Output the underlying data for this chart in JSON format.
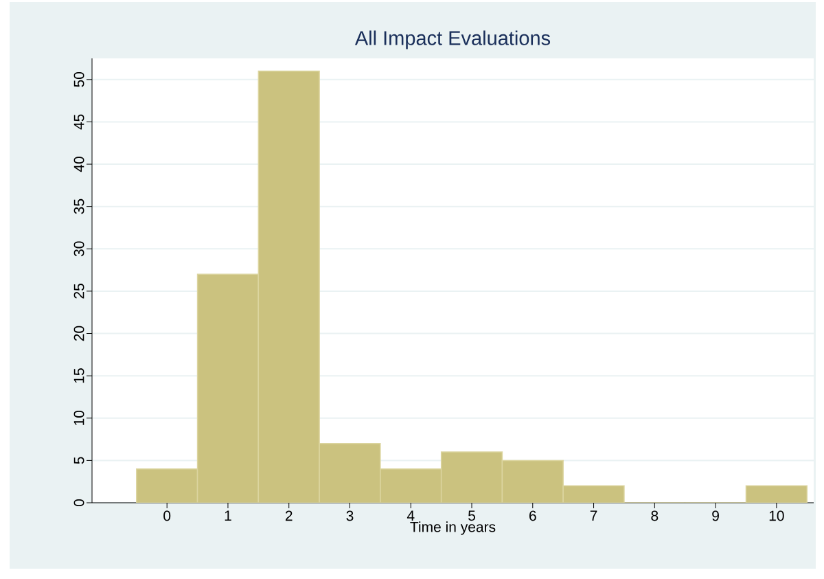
{
  "chart_data": {
    "type": "histogram",
    "title": "All Impact Evaluations",
    "xlabel": "Time in years",
    "bins": [
      -0.5,
      0.5,
      1.5,
      2.5,
      3.5,
      4.5,
      5.5,
      6.5,
      7.5,
      8.5,
      9.5,
      10.5
    ],
    "values": [
      4,
      27,
      51,
      7,
      4,
      6,
      5,
      2,
      0,
      0,
      2
    ],
    "color": "#cbc27f",
    "xlim": [
      -1.23,
      10.61
    ],
    "ylim": [
      0,
      52.5
    ],
    "xticks": [
      0,
      1,
      2,
      3,
      4,
      5,
      6,
      7,
      8,
      9,
      10
    ],
    "yticks": [
      0,
      5,
      10,
      15,
      20,
      25,
      30,
      35,
      40,
      45,
      50
    ],
    "grid": "y"
  }
}
